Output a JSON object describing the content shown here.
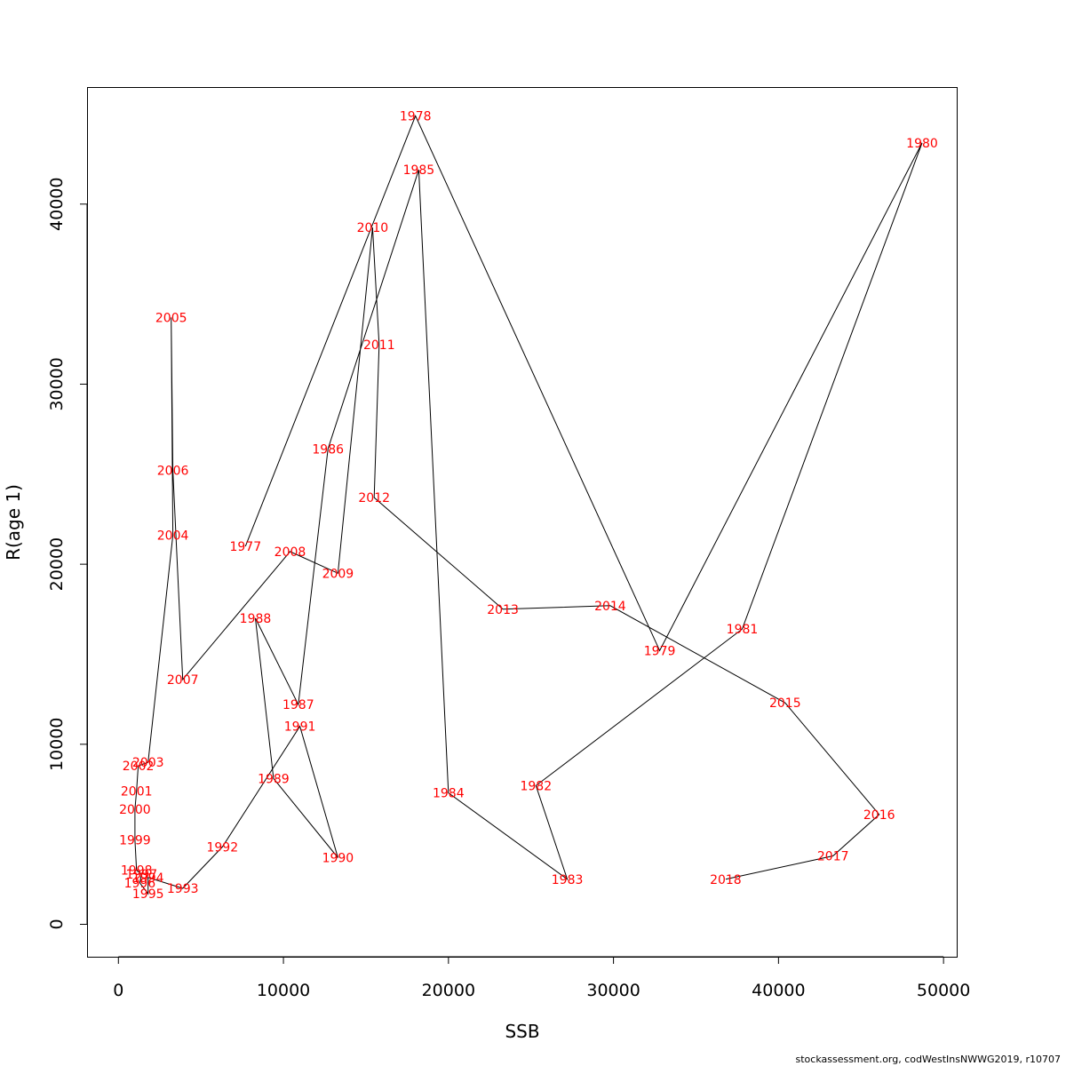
{
  "chart_data": {
    "type": "line",
    "xlabel": "SSB",
    "ylabel": "R(age 1)",
    "xlim": [
      -1900,
      50800
    ],
    "ylim": [
      -1800,
      46500
    ],
    "xticks": [
      0,
      10000,
      20000,
      30000,
      40000,
      50000
    ],
    "yticks": [
      0,
      10000,
      20000,
      30000,
      40000
    ],
    "label_color": "#ff0000",
    "line_color": "#000000",
    "grid": false,
    "legend": "none",
    "points": [
      {
        "year": "1977",
        "x": 7700,
        "y": 21000
      },
      {
        "year": "1978",
        "x": 18000,
        "y": 44900
      },
      {
        "year": "1979",
        "x": 32800,
        "y": 15200
      },
      {
        "year": "1980",
        "x": 48700,
        "y": 43400
      },
      {
        "year": "1981",
        "x": 37800,
        "y": 16400
      },
      {
        "year": "1982",
        "x": 25300,
        "y": 7700
      },
      {
        "year": "1983",
        "x": 27200,
        "y": 2500
      },
      {
        "year": "1984",
        "x": 20000,
        "y": 7300
      },
      {
        "year": "1985",
        "x": 18200,
        "y": 41900
      },
      {
        "year": "1986",
        "x": 12700,
        "y": 26400
      },
      {
        "year": "1987",
        "x": 10900,
        "y": 12200
      },
      {
        "year": "1988",
        "x": 8300,
        "y": 17000
      },
      {
        "year": "1989",
        "x": 9400,
        "y": 8100
      },
      {
        "year": "1990",
        "x": 13300,
        "y": 3700
      },
      {
        "year": "1991",
        "x": 11000,
        "y": 11000
      },
      {
        "year": "1992",
        "x": 6300,
        "y": 4300
      },
      {
        "year": "1993",
        "x": 3900,
        "y": 2000
      },
      {
        "year": "1994",
        "x": 1800,
        "y": 2600
      },
      {
        "year": "1995",
        "x": 1800,
        "y": 1700
      },
      {
        "year": "1996",
        "x": 1300,
        "y": 2300
      },
      {
        "year": "1997",
        "x": 1400,
        "y": 2800
      },
      {
        "year": "1998",
        "x": 1100,
        "y": 3000
      },
      {
        "year": "1999",
        "x": 1000,
        "y": 4700
      },
      {
        "year": "2000",
        "x": 1000,
        "y": 6400
      },
      {
        "year": "2001",
        "x": 1100,
        "y": 7400
      },
      {
        "year": "2002",
        "x": 1200,
        "y": 8800
      },
      {
        "year": "2003",
        "x": 1800,
        "y": 9000
      },
      {
        "year": "2004",
        "x": 3300,
        "y": 21600
      },
      {
        "year": "2005",
        "x": 3200,
        "y": 33700
      },
      {
        "year": "2006",
        "x": 3300,
        "y": 25200
      },
      {
        "year": "2007",
        "x": 3900,
        "y": 13600
      },
      {
        "year": "2008",
        "x": 10400,
        "y": 20700
      },
      {
        "year": "2009",
        "x": 13300,
        "y": 19500
      },
      {
        "year": "2010",
        "x": 15400,
        "y": 38700
      },
      {
        "year": "2011",
        "x": 15800,
        "y": 32200
      },
      {
        "year": "2012",
        "x": 15500,
        "y": 23700
      },
      {
        "year": "2013",
        "x": 23300,
        "y": 17500
      },
      {
        "year": "2014",
        "x": 29800,
        "y": 17700
      },
      {
        "year": "2015",
        "x": 40400,
        "y": 12300
      },
      {
        "year": "2016",
        "x": 46100,
        "y": 6100
      },
      {
        "year": "2017",
        "x": 43300,
        "y": 3800
      },
      {
        "year": "2018",
        "x": 36800,
        "y": 2500
      }
    ]
  },
  "footnote": "stockassessment.org, codWestInsNWWG2019, r10707"
}
